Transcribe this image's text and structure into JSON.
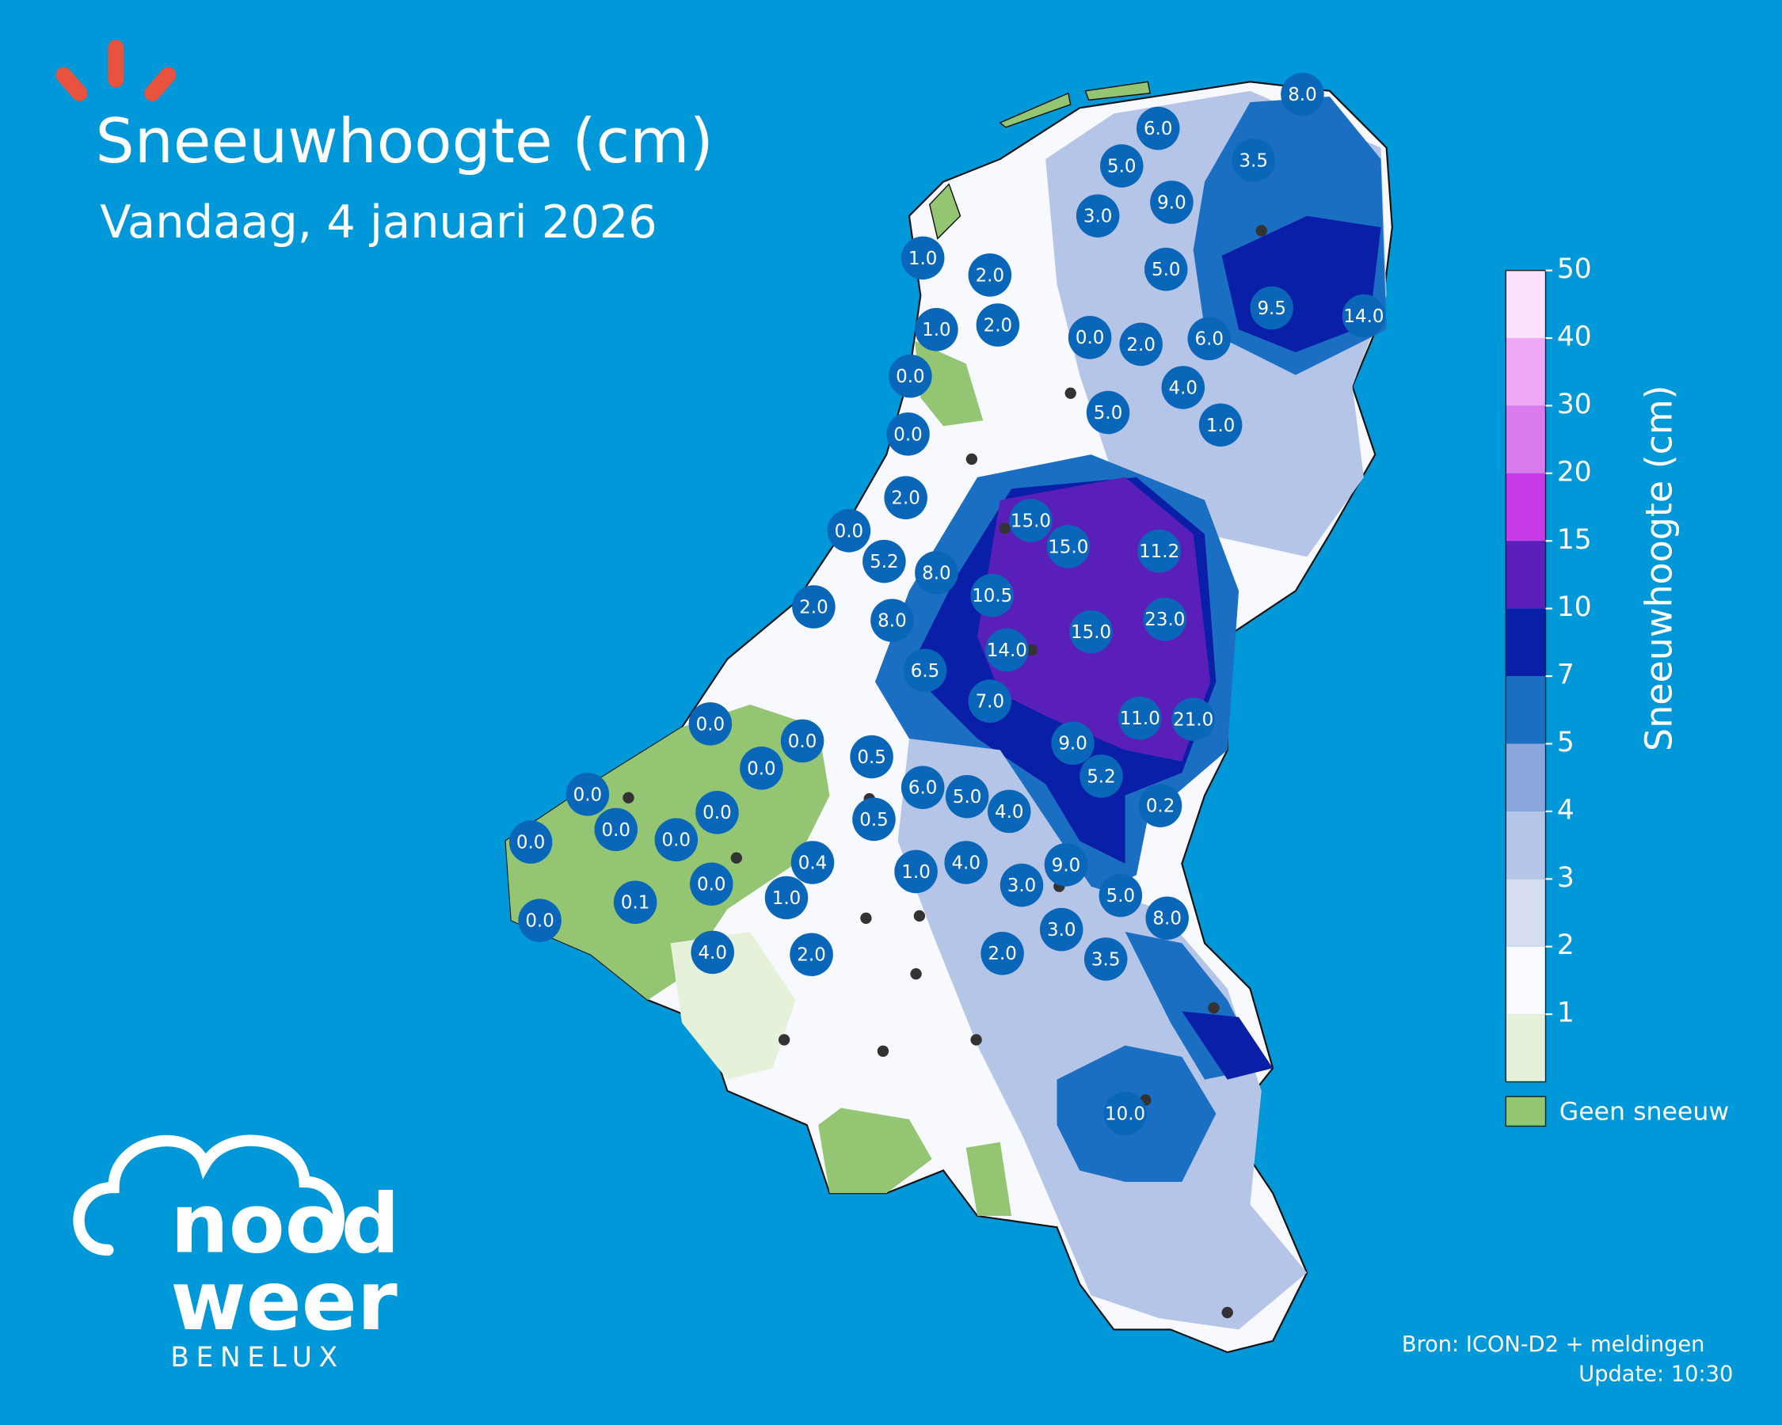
{
  "header": {
    "title": "Sneeuwhoogte (cm)",
    "subtitle": "Vandaag, 4 januari 2026"
  },
  "logo": {
    "line1": "nood",
    "line2": "weer",
    "line3": "BENELUX"
  },
  "legend": {
    "title": "Sneeuwhoogte (cm)",
    "ticks": [
      1,
      2,
      3,
      4,
      5,
      7,
      10,
      15,
      20,
      30,
      40,
      50
    ],
    "colors": [
      "#e6f1da",
      "#f9fbfe",
      "#d6ddf1",
      "#b5c5e7",
      "#8ba8dc",
      "#1b6fc3",
      "#0a1fa8",
      "#5b1fb9",
      "#c83ae8",
      "#d97aed",
      "#f0a9f5",
      "#fde1fd"
    ],
    "no_snow_label": "Geen sneeuw",
    "no_snow_color": "#93c572"
  },
  "stations": [
    "8.0",
    "6.0",
    "5.0",
    "3.5",
    "9.0",
    "3.0",
    "1.0",
    "2.0",
    "5.0",
    "9.5",
    "14.0",
    "1.0",
    "2.0",
    "0.0",
    "2.0",
    "6.0",
    "0.0",
    "4.0",
    "5.0",
    "1.0",
    "0.0",
    "2.0",
    "15.0",
    "15.0",
    "11.2",
    "0.0",
    "5.2",
    "8.0",
    "10.5",
    "2.0",
    "8.0",
    "15.0",
    "23.0",
    "14.0",
    "6.5",
    "7.0",
    "11.0",
    "21.0",
    "0.0",
    "0.0",
    "9.0",
    "0.5",
    "0.0",
    "5.2",
    "6.0",
    "5.0",
    "4.0",
    "0.2",
    "0.0",
    "0.0",
    "0.0",
    "0.0",
    "0.5",
    "0.0",
    "0.4",
    "4.0",
    "1.0",
    "9.0",
    "0.0",
    "3.0",
    "1.0",
    "0.1",
    "5.0",
    "8.0",
    "0.0",
    "3.0",
    "4.0",
    "2.0",
    "2.0",
    "3.5",
    "10.0"
  ],
  "footer": {
    "source": "Bron: ICON-D2 + meldingen",
    "update": "Update: 10:30"
  }
}
